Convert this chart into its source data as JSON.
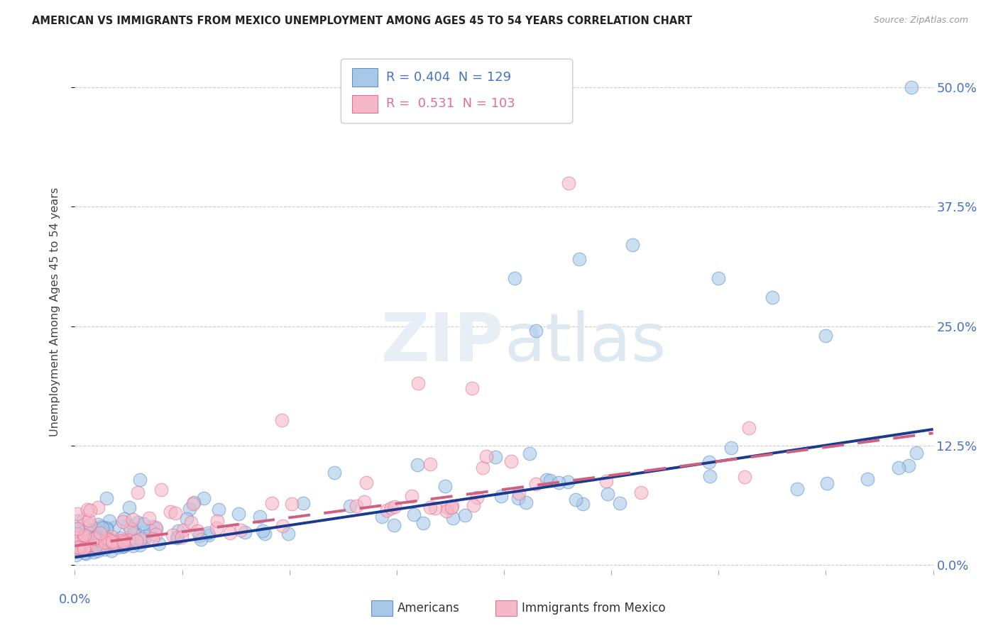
{
  "title": "AMERICAN VS IMMIGRANTS FROM MEXICO UNEMPLOYMENT AMONG AGES 45 TO 54 YEARS CORRELATION CHART",
  "source": "Source: ZipAtlas.com",
  "ylabel": "Unemployment Among Ages 45 to 54 years",
  "ytick_labels": [
    "0.0%",
    "12.5%",
    "25.0%",
    "37.5%",
    "50.0%"
  ],
  "ytick_values": [
    0.0,
    0.125,
    0.25,
    0.375,
    0.5
  ],
  "xmin": 0.0,
  "xmax": 0.8,
  "ymin": -0.005,
  "ymax": 0.535,
  "r_am": "0.404",
  "n_am": "129",
  "r_mx": "0.531",
  "n_mx": "103",
  "color_american_fill": "#a8c8e8",
  "color_american_edge": "#6090c8",
  "color_mexico_fill": "#f4b8c8",
  "color_mexico_edge": "#e87090",
  "color_am_line": "#1a3a8f",
  "color_mx_line": "#d06080",
  "color_r_blue": "#4472c4",
  "color_r_pink": "#e07090",
  "watermark_color": "#e8eef5",
  "am_line_start_y": 0.008,
  "am_line_end_y": 0.142,
  "mx_line_start_y": 0.02,
  "mx_line_end_y": 0.138
}
